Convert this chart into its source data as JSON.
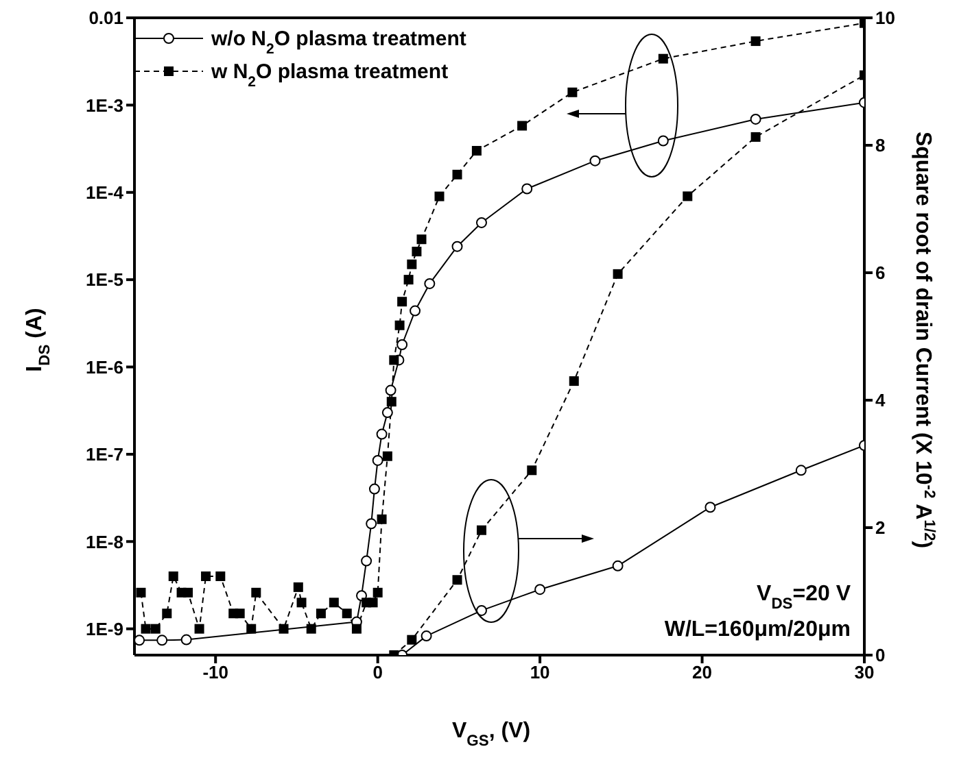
{
  "chart_data": {
    "type": "line",
    "xlabel": "V$_{GS}$, (V)",
    "ylabel": "I$_{DS}$ (A)",
    "y2label": "Square root of drain Current (X 10$^{-2}$ A$^{1/2}$)",
    "xlim": [
      -15,
      30
    ],
    "xticks": [
      -10,
      0,
      10,
      20,
      30
    ],
    "log": "y",
    "ylim": [
      5e-10,
      0.01
    ],
    "yticks": [
      0.01,
      {
        "value": 0.001,
        "label": "1E-3"
      },
      {
        "value": 0.0001,
        "label": "1E-4"
      },
      {
        "value": 1e-05,
        "label": "1E-5"
      },
      {
        "value": 1e-06,
        "label": "1E-6"
      },
      {
        "value": 1e-07,
        "label": "1E-7"
      },
      {
        "value": 1e-08,
        "label": "1E-8"
      },
      {
        "value": 1e-09,
        "label": "1E-9"
      }
    ],
    "y2lim": [
      0,
      10
    ],
    "y2ticks": [
      0,
      2,
      4,
      6,
      8,
      10
    ],
    "legend": "top left",
    "annotations": [
      "V$_{DS}$=20 V",
      "W/L=160μm/20μm"
    ],
    "series": [
      {
        "name": "w/o N$_{2}$O plasma treatment",
        "color": "#000000",
        "marker": "circle",
        "line_style": "solid",
        "x": [
          -14.7,
          -13.3,
          -11.8,
          -1.3,
          -1.0,
          -0.7,
          -0.4,
          -0.2,
          0,
          0.25,
          0.6,
          0.8,
          1.3,
          1.5,
          2.3,
          3.2,
          4.9,
          6.4,
          9.2,
          13.4,
          17.6,
          23.3,
          30
        ],
        "values": [
          7.4e-10,
          7.4e-10,
          7.5e-10,
          1.2e-09,
          2.4e-09,
          6e-09,
          1.6e-08,
          4e-08,
          8.5e-08,
          1.7e-07,
          3e-07,
          5.4e-07,
          1.2e-06,
          1.8e-06,
          4.4e-06,
          9e-06,
          2.4e-05,
          4.5e-05,
          0.00011,
          0.00023,
          0.00039,
          0.00069,
          0.00107
        ]
      },
      {
        "name": "w N$_{2}$O plasma treatment",
        "color": "#000000",
        "marker": "square",
        "line_style": "dashed",
        "x": [
          -14.6,
          -14.3,
          -13.7,
          -13.0,
          -12.6,
          -12.1,
          -11.7,
          -11.0,
          -10.6,
          -9.7,
          -8.9,
          -8.5,
          -7.8,
          -7.5,
          -5.8,
          -4.9,
          -4.7,
          -4.1,
          -3.5,
          -2.7,
          -1.9,
          -1.3,
          -0.7,
          -0.3,
          0,
          0.25,
          0.6,
          0.85,
          1.0,
          1.35,
          1.5,
          1.9,
          2.1,
          2.4,
          2.7,
          3.8,
          4.9,
          6.1,
          8.9,
          12.0,
          17.6,
          23.3,
          30
        ],
        "values": [
          2.6e-09,
          1e-09,
          1e-09,
          1.5e-09,
          4e-09,
          2.6e-09,
          2.6e-09,
          1e-09,
          4e-09,
          4e-09,
          1.5e-09,
          1.5e-09,
          1e-09,
          2.6e-09,
          1e-09,
          3e-09,
          2e-09,
          1e-09,
          1.5e-09,
          2e-09,
          1.5e-09,
          1e-09,
          2e-09,
          2e-09,
          2.6e-09,
          1.8e-08,
          9.5e-08,
          4e-07,
          1.2e-06,
          3e-06,
          5.6e-06,
          1e-05,
          1.5e-05,
          2.1e-05,
          2.9e-05,
          9e-05,
          0.00016,
          0.0003,
          0.00058,
          0.0014,
          0.0034,
          0.0054,
          0.0087
        ]
      },
      {
        "axis": "y2",
        "color": "#000000",
        "marker": "circle",
        "line_style": "solid",
        "x": [
          1.5,
          3,
          6.4,
          10,
          14.8,
          20.5,
          26.1,
          30
        ],
        "values": [
          0,
          0.3,
          0.7,
          1.03,
          1.4,
          2.32,
          2.9,
          3.29
        ]
      },
      {
        "axis": "y2",
        "color": "#000000",
        "marker": "square",
        "line_style": "dashed",
        "x": [
          1,
          2.1,
          4.9,
          6.4,
          9.5,
          12.1,
          14.8,
          19.1,
          23.3,
          30
        ],
        "values": [
          0,
          0.24,
          1.18,
          1.96,
          2.9,
          4.3,
          5.98,
          7.2,
          8.13,
          9.1
        ]
      }
    ]
  }
}
